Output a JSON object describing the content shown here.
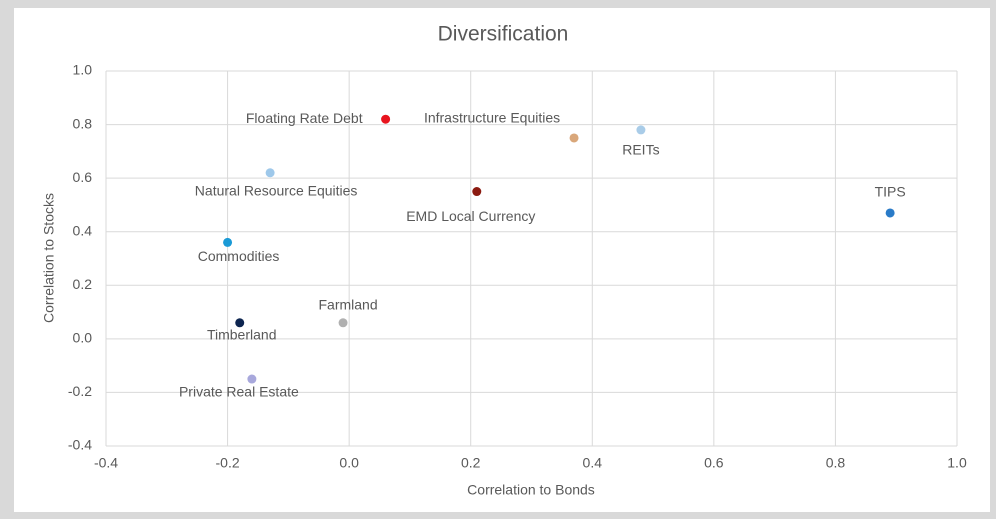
{
  "chart_data": {
    "type": "scatter",
    "title": "Diversification",
    "x_label": "Correlation to Bonds",
    "y_label": "Correlation to Stocks",
    "labels": [
      "Floating Rate Debt",
      "Infrastructure Equities",
      "REITs",
      "Natural Resource Equities",
      "EMD Local Currency",
      "TIPS",
      "Commodities",
      "Farmland",
      "Timberland",
      "Private Real Estate"
    ],
    "x": [
      0.06,
      0.37,
      0.48,
      -0.13,
      0.21,
      0.89,
      -0.2,
      -0.01,
      -0.18,
      -0.16
    ],
    "values": [
      0.82,
      0.75,
      0.78,
      0.62,
      0.55,
      0.47,
      0.36,
      0.06,
      0.06,
      -0.15
    ],
    "colors": [
      "#e8141e",
      "#d9a77a",
      "#a9cce8",
      "#9ec8ea",
      "#8b1a10",
      "#2a7bc8",
      "#1a9ad6",
      "#b0b0b0",
      "#0d2550",
      "#a8a8dc"
    ],
    "xlim": [
      -0.4,
      1.0
    ],
    "xticks": [
      -0.4,
      -0.2,
      {
        "value": 0,
        "label": "0.0"
      },
      0.2,
      0.4,
      0.6,
      0.8,
      {
        "value": 1,
        "label": "1.0"
      }
    ],
    "ylim": [
      -0.4,
      1.0
    ],
    "yticks": [
      -0.4,
      -0.2,
      {
        "value": 0,
        "label": "0.0"
      },
      0.2,
      0.4,
      0.6,
      0.8,
      {
        "value": 1,
        "label": "1.0"
      }
    ],
    "grid": true
  }
}
